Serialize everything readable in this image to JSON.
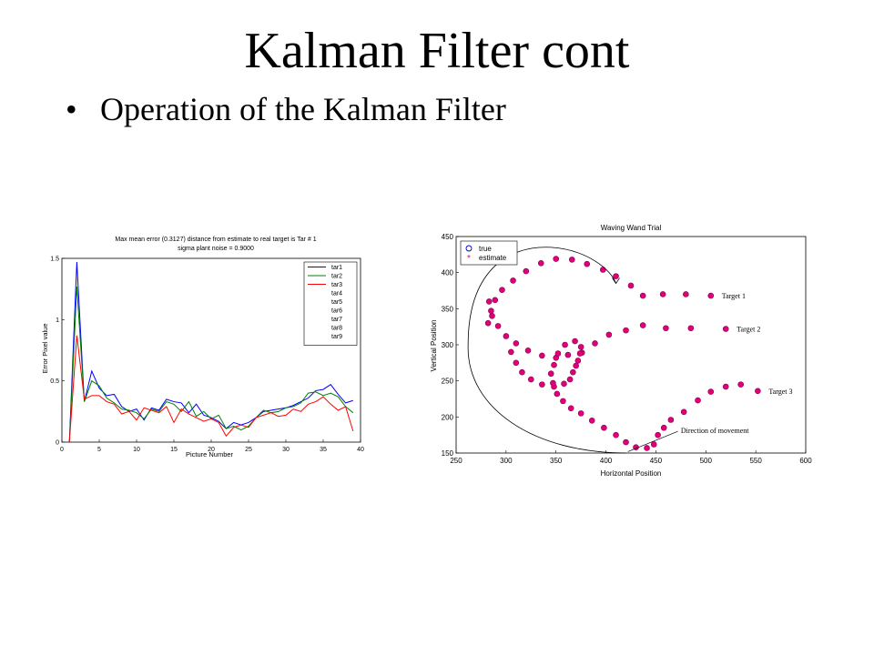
{
  "slide": {
    "title": "Kalman Filter cont",
    "bullet": "Operation of the Kalman Filter"
  },
  "chart_data": [
    {
      "type": "line",
      "title": "Max mean error (0.3127) distance from estimate to real target is Tar # 1",
      "subtitle": "sigma plant noise = 0.9000",
      "xlabel": "Picture Number",
      "ylabel": "Error Pixel value",
      "xlim": [
        0,
        40
      ],
      "ylim": [
        0,
        1.5
      ],
      "xticks": [
        0,
        5,
        10,
        15,
        20,
        25,
        30,
        35,
        40
      ],
      "yticks": [
        0,
        0.5,
        1,
        1.5
      ],
      "ytick_labels": [
        "0",
        "0.5",
        "1",
        "1.5"
      ],
      "legend_position": "top-right",
      "legend": [
        "tar1",
        "tar2",
        "tar3",
        "tar4",
        "tar5",
        "tar6",
        "tar7",
        "tar8",
        "tar9"
      ],
      "colors": [
        "#0000ff",
        "#008000",
        "#ff0000"
      ],
      "x": [
        1,
        2,
        3,
        4,
        5,
        6,
        7,
        8,
        9,
        10,
        11,
        12,
        13,
        14,
        15,
        16,
        17,
        18,
        19,
        20,
        21,
        22,
        23,
        24,
        25,
        26,
        27,
        28,
        29,
        30,
        31,
        32,
        33,
        34,
        35,
        36,
        37,
        38,
        39
      ],
      "series": [
        {
          "name": "tar1",
          "color": "#0000ff",
          "values": [
            0.0,
            1.47,
            0.33,
            0.58,
            0.44,
            0.38,
            0.39,
            0.29,
            0.25,
            0.27,
            0.18,
            0.28,
            0.26,
            0.35,
            0.33,
            0.32,
            0.24,
            0.31,
            0.22,
            0.2,
            0.17,
            0.11,
            0.16,
            0.14,
            0.16,
            0.2,
            0.25,
            0.26,
            0.27,
            0.28,
            0.3,
            0.33,
            0.36,
            0.42,
            0.43,
            0.47,
            0.39,
            0.32,
            0.34
          ]
        },
        {
          "name": "tar2",
          "color": "#008000",
          "values": [
            0.0,
            1.27,
            0.33,
            0.5,
            0.46,
            0.36,
            0.32,
            0.27,
            0.26,
            0.24,
            0.19,
            0.27,
            0.25,
            0.33,
            0.31,
            0.25,
            0.33,
            0.21,
            0.25,
            0.19,
            0.22,
            0.11,
            0.13,
            0.1,
            0.13,
            0.2,
            0.26,
            0.24,
            0.25,
            0.28,
            0.29,
            0.32,
            0.4,
            0.41,
            0.38,
            0.4,
            0.37,
            0.29,
            0.24
          ]
        },
        {
          "name": "tar3",
          "color": "#ff0000",
          "values": [
            0.0,
            0.87,
            0.35,
            0.38,
            0.38,
            0.33,
            0.31,
            0.23,
            0.25,
            0.18,
            0.28,
            0.26,
            0.24,
            0.29,
            0.16,
            0.27,
            0.23,
            0.2,
            0.17,
            0.19,
            0.16,
            0.05,
            0.12,
            0.14,
            0.12,
            0.2,
            0.22,
            0.24,
            0.21,
            0.22,
            0.27,
            0.25,
            0.31,
            0.33,
            0.37,
            0.31,
            0.26,
            0.29,
            0.09
          ]
        }
      ]
    },
    {
      "type": "scatter",
      "title": "Waving Wand Trial",
      "xlabel": "Horizontal Position",
      "ylabel": "Vertical Position",
      "xlim": [
        250,
        600
      ],
      "ylim": [
        150,
        450
      ],
      "xticks": [
        250,
        300,
        350,
        400,
        450,
        500,
        550,
        600
      ],
      "yticks": [
        150,
        200,
        250,
        300,
        350,
        400,
        450
      ],
      "legend_position": "top-left",
      "legend": [
        "true",
        "estimate"
      ],
      "colors": [
        "#0000cc",
        "#e0007a"
      ],
      "annotations": [
        "Target 1",
        "Target 2",
        "Target 3",
        "Direction of movement"
      ],
      "series": [
        {
          "name": "Target 1",
          "points": [
            [
              282,
              330
            ],
            [
              285,
              347
            ],
            [
              289,
              362
            ],
            [
              296,
              376
            ],
            [
              307,
              389
            ],
            [
              320,
              402
            ],
            [
              335,
              413
            ],
            [
              350,
              419
            ],
            [
              366,
              418
            ],
            [
              381,
              412
            ],
            [
              397,
              404
            ],
            [
              410,
              395
            ],
            [
              425,
              382
            ],
            [
              437,
              368
            ],
            [
              457,
              370
            ],
            [
              480,
              370
            ],
            [
              505,
              368
            ]
          ]
        },
        {
          "name": "Target 2",
          "points": [
            [
              283,
              360
            ],
            [
              286,
              340
            ],
            [
              292,
              326
            ],
            [
              300,
              312
            ],
            [
              310,
              302
            ],
            [
              322,
              292
            ],
            [
              336,
              285
            ],
            [
              350,
              282
            ],
            [
              362,
              286
            ],
            [
              376,
              289
            ],
            [
              389,
              302
            ],
            [
              403,
              314
            ],
            [
              420,
              320
            ],
            [
              437,
              327
            ],
            [
              460,
              323
            ],
            [
              485,
              323
            ],
            [
              520,
              322
            ]
          ]
        },
        {
          "name": "Target 3",
          "points": [
            [
              305,
              290
            ],
            [
              310,
              275
            ],
            [
              316,
              262
            ],
            [
              325,
              252
            ],
            [
              336,
              245
            ],
            [
              348,
              242
            ],
            [
              358,
              246
            ],
            [
              364,
              252
            ],
            [
              367,
              262
            ],
            [
              370,
              271
            ],
            [
              372,
              278
            ],
            [
              374,
              288
            ],
            [
              375,
              297
            ],
            [
              369,
              305
            ],
            [
              359,
              300
            ],
            [
              352,
              288
            ],
            [
              348,
              272
            ],
            [
              345,
              260
            ],
            [
              347,
              247
            ],
            [
              351,
              232
            ],
            [
              357,
              222
            ],
            [
              365,
              212
            ],
            [
              375,
              205
            ],
            [
              386,
              195
            ],
            [
              398,
              185
            ],
            [
              410,
              175
            ],
            [
              420,
              165
            ],
            [
              430,
              158
            ],
            [
              441,
              157
            ],
            [
              448,
              162
            ],
            [
              452,
              175
            ],
            [
              458,
              185
            ],
            [
              465,
              196
            ],
            [
              478,
              207
            ],
            [
              492,
              223
            ],
            [
              505,
              235
            ],
            [
              520,
              242
            ],
            [
              535,
              245
            ],
            [
              552,
              236
            ]
          ]
        }
      ]
    }
  ]
}
